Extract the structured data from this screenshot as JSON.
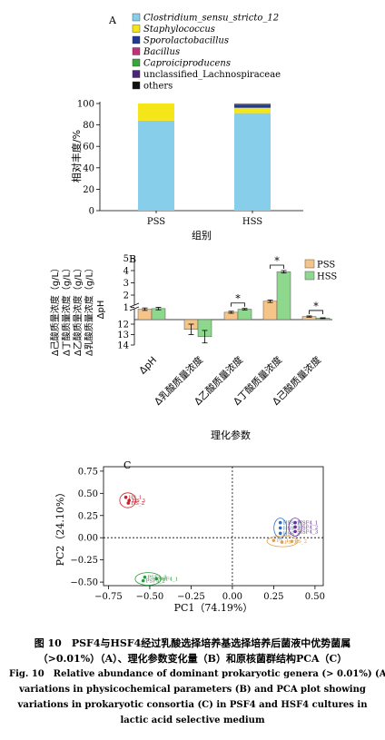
{
  "figure": {
    "panel_a": {
      "label": "A",
      "legend": [
        {
          "name": "Clostridium_sensu_stricto_12",
          "color": "#87ceeb",
          "italic": true
        },
        {
          "name": "Staphylococcus",
          "color": "#f5e61a",
          "italic": true
        },
        {
          "name": "Sporolactobacillus",
          "color": "#1f3a8f",
          "italic": true
        },
        {
          "name": "Bacillus",
          "color": "#c2307a",
          "italic": true
        },
        {
          "name": "Caproiciproducens",
          "color": "#3aa53a",
          "italic": true
        },
        {
          "name": "unclassified_Lachnospiraceae",
          "color": "#4b2377",
          "italic": false
        },
        {
          "name": "others",
          "color": "#111111",
          "italic": false
        }
      ]
    },
    "panel_b": {
      "label": "B"
    },
    "panel_c": {
      "label": "C"
    },
    "caption": {
      "zh_line1": "图 10　PSF4与HSF4经过乳酸选择培养基选择培养后菌液中优势菌属",
      "zh_line2": "（>0.01%）（A）、理化参数变化量（B）和原核菌群结构PCA（C）",
      "en_line1": "Fig. 10　Relative abundance of dominant prokaryotic genera (> 0.01%) (A),",
      "en_line2": "variations in physicochemical parameters (B) and PCA plot showing",
      "en_line3": "variations in prokaryotic consortia (C) in PSF4 and HSF4 cultures in",
      "en_line4": "lactic acid selective medium"
    }
  },
  "chart_data": [
    {
      "type": "bar",
      "panel": "A",
      "stacked": true,
      "categories": [
        "PSS",
        "HSS"
      ],
      "series": [
        {
          "name": "Clostridium_sensu_stricto_12",
          "values": [
            84,
            91
          ]
        },
        {
          "name": "Staphylococcus",
          "values": [
            16,
            5
          ]
        },
        {
          "name": "Sporolactobacillus",
          "values": [
            0,
            3
          ]
        },
        {
          "name": "Bacillus",
          "values": [
            0,
            0.3
          ]
        },
        {
          "name": "Caproiciproducens",
          "values": [
            0,
            0.2
          ]
        },
        {
          "name": "unclassified_Lachnospiraceae",
          "values": [
            0,
            0.3
          ]
        },
        {
          "name": "others",
          "values": [
            0,
            0.2
          ]
        }
      ],
      "yticks": [
        0,
        20,
        40,
        60,
        80,
        100
      ],
      "ylim": [
        0,
        100
      ],
      "xlabel": "组别",
      "ylabel": "相对丰度/%",
      "legend_placement": "top"
    },
    {
      "type": "bar",
      "panel": "B",
      "categories": [
        "ΔpH",
        "Δ乳酸质量浓度",
        "Δ乙酸质量浓度",
        "Δ丁酸质量浓度",
        "Δ己酸质量浓度"
      ],
      "series": [
        {
          "name": "PSS",
          "color": "#f5c489",
          "values": [
            0.85,
            -12.5,
            0.6,
            1.5,
            0.25
          ],
          "errors": [
            0.1,
            0.5,
            0.08,
            0.1,
            0.05
          ]
        },
        {
          "name": "HSS",
          "color": "#8ed88e",
          "values": [
            0.9,
            -13.2,
            0.85,
            3.9,
            0.12
          ],
          "errors": [
            0.1,
            0.6,
            0.06,
            0.1,
            0.03
          ]
        }
      ],
      "significance": [
        {
          "category": "Δ乙酸质量浓度",
          "text": "*"
        },
        {
          "category": "Δ丁酸质量浓度",
          "text": "*"
        },
        {
          "category": "Δ己酸质量浓度",
          "text": "*"
        }
      ],
      "yticks_upper": [
        0,
        1,
        2,
        3,
        4,
        5
      ],
      "yticks_lower": [
        12,
        13,
        14
      ],
      "axis_break": true,
      "xlabel": "理化参数",
      "ylabel_lines": [
        "Δ己酸质量浓度（g/L）",
        "Δ丁酸质量浓度（g/L）",
        "Δ乙酸质量浓度（g/L）",
        "Δ乳酸质量浓度（g/L）",
        "ΔpH"
      ],
      "legend_placement": "top-right"
    },
    {
      "type": "scatter",
      "panel": "C",
      "xlabel": "PC1（74.19%）",
      "ylabel": "PC2（24.10%）",
      "xticks": [
        -0.75,
        -0.5,
        -0.25,
        0.0,
        0.25,
        0.5
      ],
      "xtick_labels": [
        "−0.75",
        "−0.50",
        "−0.25",
        "0.00",
        "0.25",
        "0.50"
      ],
      "yticks": [
        -0.5,
        -0.25,
        0.0,
        0.25,
        0.5,
        0.75
      ],
      "ytick_labels": [
        "−0.50",
        "−0.25",
        "0.00",
        "0.25",
        "0.50",
        "0.75"
      ],
      "xlim": [
        -0.78,
        0.55
      ],
      "ylim": [
        -0.54,
        0.8
      ],
      "groups": [
        {
          "name": "HS",
          "color": "#cc1f2b",
          "points": [
            {
              "label": "HS_1",
              "x": -0.645,
              "y": 0.455
            },
            {
              "label": "HS_3",
              "x": -0.625,
              "y": 0.42
            },
            {
              "label": "HS_2",
              "x": -0.63,
              "y": 0.39
            }
          ]
        },
        {
          "name": "PSF4",
          "color": "#2b9a3e",
          "points": [
            {
              "label": "PSF4_3",
              "x": -0.53,
              "y": -0.445
            },
            {
              "label": "PSF4_2",
              "x": -0.54,
              "y": -0.485
            },
            {
              "label": "PSF4_1",
              "x": -0.46,
              "y": -0.462
            }
          ]
        },
        {
          "name": "HSS",
          "color": "#2f6fbf",
          "points": [
            {
              "label": "HSS_1",
              "x": 0.29,
              "y": 0.17
            },
            {
              "label": "HSS_3",
              "x": 0.29,
              "y": 0.11
            },
            {
              "label": "HSS_2",
              "x": 0.29,
              "y": 0.05
            }
          ]
        },
        {
          "name": "HSF4",
          "color": "#6a2c9a",
          "points": [
            {
              "label": "HSF4_1",
              "x": 0.38,
              "y": 0.17
            },
            {
              "label": "HSF4_2",
              "x": 0.38,
              "y": 0.12
            },
            {
              "label": "HSF4_3",
              "x": 0.38,
              "y": 0.07
            }
          ]
        },
        {
          "name": "PS",
          "color": "#e0a050",
          "points": [
            {
              "label": "PS_1",
              "x": 0.25,
              "y": -0.03
            },
            {
              "label": "PS_3",
              "x": 0.3,
              "y": -0.05
            },
            {
              "label": "PS_2",
              "x": 0.36,
              "y": -0.04
            }
          ]
        }
      ],
      "reference_lines": [
        "x = 0",
        "y = 0"
      ]
    }
  ]
}
